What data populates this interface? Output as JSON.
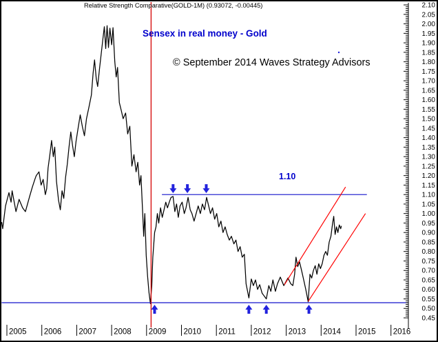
{
  "header": {
    "title": "Relative Strength Comparative(GOLD-1M) (0.93072, -0.00445)"
  },
  "annotations": {
    "subtitle": "Sensex in real money - Gold",
    "copyright": "© September 2014 Waves Strategy Advisors",
    "resistance_label": "1.10"
  },
  "colors": {
    "price": "#000000",
    "line_blue": "#1111CC",
    "arrow_blue": "#2222DD",
    "text_blue": "#0000CC",
    "red_channel": "#FF0000",
    "red_vline": "#D40000",
    "axis": "#000000",
    "background": "#FFFFFF"
  },
  "chart_data": {
    "type": "line",
    "title": "Relative Strength Comparative(GOLD-1M)",
    "last_value": 0.93072,
    "last_change": -0.00445,
    "grid": false,
    "legend_position": "none",
    "x_axis": {
      "label": "",
      "ticks": [
        2005,
        2006,
        2007,
        2008,
        2009,
        2010,
        2011,
        2012,
        2013,
        2014,
        2015,
        2016
      ],
      "range": [
        2004.85,
        2016.55
      ]
    },
    "y_axis": {
      "label": "",
      "min": 0.45,
      "max": 2.1,
      "step": 0.05,
      "minor_step": 0.01,
      "side": "right"
    },
    "series": [
      {
        "name": "Sensex priced in Gold (relative strength)",
        "color": "#000000",
        "points": [
          [
            2004.85,
            0.955
          ],
          [
            2004.88,
            0.92
          ],
          [
            2004.96,
            1.04
          ],
          [
            2005.06,
            1.11
          ],
          [
            2005.12,
            1.06
          ],
          [
            2005.15,
            1.12
          ],
          [
            2005.26,
            1.01
          ],
          [
            2005.35,
            1.075
          ],
          [
            2005.45,
            1.03
          ],
          [
            2005.53,
            1.01
          ],
          [
            2005.65,
            1.09
          ],
          [
            2005.73,
            1.14
          ],
          [
            2005.8,
            1.18
          ],
          [
            2005.84,
            1.2
          ],
          [
            2005.92,
            1.22
          ],
          [
            2005.98,
            1.15
          ],
          [
            2006.04,
            1.18
          ],
          [
            2006.1,
            1.1
          ],
          [
            2006.14,
            1.13
          ],
          [
            2006.18,
            1.24
          ],
          [
            2006.23,
            1.31
          ],
          [
            2006.28,
            1.385
          ],
          [
            2006.33,
            1.3
          ],
          [
            2006.37,
            1.35
          ],
          [
            2006.42,
            1.17
          ],
          [
            2006.48,
            1.07
          ],
          [
            2006.53,
            1.02
          ],
          [
            2006.58,
            1.12
          ],
          [
            2006.63,
            1.08
          ],
          [
            2006.68,
            1.19
          ],
          [
            2006.73,
            1.26
          ],
          [
            2006.78,
            1.35
          ],
          [
            2006.83,
            1.43
          ],
          [
            2006.88,
            1.36
          ],
          [
            2006.93,
            1.3
          ],
          [
            2006.98,
            1.38
          ],
          [
            2007.04,
            1.45
          ],
          [
            2007.1,
            1.52
          ],
          [
            2007.16,
            1.46
          ],
          [
            2007.22,
            1.41
          ],
          [
            2007.28,
            1.5
          ],
          [
            2007.35,
            1.56
          ],
          [
            2007.42,
            1.625
          ],
          [
            2007.47,
            1.74
          ],
          [
            2007.51,
            1.81
          ],
          [
            2007.56,
            1.71
          ],
          [
            2007.6,
            1.67
          ],
          [
            2007.65,
            1.76
          ],
          [
            2007.7,
            1.84
          ],
          [
            2007.75,
            1.92
          ],
          [
            2007.79,
            1.985
          ],
          [
            2007.83,
            1.87
          ],
          [
            2007.87,
            1.99
          ],
          [
            2007.91,
            1.875
          ],
          [
            2007.95,
            1.977
          ],
          [
            2008.0,
            1.89
          ],
          [
            2008.04,
            1.98
          ],
          [
            2008.09,
            1.8
          ],
          [
            2008.13,
            1.72
          ],
          [
            2008.17,
            1.77
          ],
          [
            2008.22,
            1.585
          ],
          [
            2008.28,
            1.54
          ],
          [
            2008.33,
            1.5
          ],
          [
            2008.4,
            1.53
          ],
          [
            2008.46,
            1.42
          ],
          [
            2008.52,
            1.46
          ],
          [
            2008.58,
            1.25
          ],
          [
            2008.64,
            1.31
          ],
          [
            2008.7,
            1.22
          ],
          [
            2008.75,
            1.27
          ],
          [
            2008.8,
            1.15
          ],
          [
            2008.84,
            1.2
          ],
          [
            2008.88,
            1.04
          ],
          [
            2008.92,
            0.88
          ],
          [
            2008.95,
            1.0
          ],
          [
            2008.99,
            0.78
          ],
          [
            2009.03,
            0.67
          ],
          [
            2009.07,
            0.585
          ],
          [
            2009.11,
            0.525
          ],
          [
            2009.15,
            0.62
          ],
          [
            2009.18,
            0.77
          ],
          [
            2009.23,
            0.9
          ],
          [
            2009.27,
            0.93
          ],
          [
            2009.31,
            1.0
          ],
          [
            2009.35,
            0.95
          ],
          [
            2009.4,
            1.03
          ],
          [
            2009.45,
            0.98
          ],
          [
            2009.5,
            1.02
          ],
          [
            2009.55,
            1.06
          ],
          [
            2009.6,
            1.03
          ],
          [
            2009.65,
            1.06
          ],
          [
            2009.7,
            1.085
          ],
          [
            2009.76,
            1.09
          ],
          [
            2009.81,
            1.01
          ],
          [
            2009.86,
            1.05
          ],
          [
            2009.91,
            0.98
          ],
          [
            2009.96,
            1.04
          ],
          [
            2010.02,
            1.06
          ],
          [
            2010.08,
            1.0
          ],
          [
            2010.13,
            1.03
          ],
          [
            2010.19,
            1.085
          ],
          [
            2010.25,
            1.02
          ],
          [
            2010.3,
            1.0
          ],
          [
            2010.36,
            0.96
          ],
          [
            2010.42,
            1.0
          ],
          [
            2010.48,
            1.04
          ],
          [
            2010.54,
            1.0
          ],
          [
            2010.6,
            1.05
          ],
          [
            2010.66,
            1.02
          ],
          [
            2010.72,
            1.085
          ],
          [
            2010.78,
            1.04
          ],
          [
            2010.83,
            1.0
          ],
          [
            2010.89,
            1.03
          ],
          [
            2010.95,
            0.97
          ],
          [
            2011.01,
            1.0
          ],
          [
            2011.07,
            0.93
          ],
          [
            2011.13,
            0.96
          ],
          [
            2011.19,
            0.9
          ],
          [
            2011.25,
            0.93
          ],
          [
            2011.31,
            0.89
          ],
          [
            2011.37,
            0.86
          ],
          [
            2011.43,
            0.88
          ],
          [
            2011.5,
            0.84
          ],
          [
            2011.56,
            0.86
          ],
          [
            2011.62,
            0.8
          ],
          [
            2011.68,
            0.825
          ],
          [
            2011.74,
            0.77
          ],
          [
            2011.8,
            0.785
          ],
          [
            2011.85,
            0.63
          ],
          [
            2011.93,
            0.555
          ],
          [
            2012.0,
            0.655
          ],
          [
            2012.06,
            0.62
          ],
          [
            2012.12,
            0.65
          ],
          [
            2012.18,
            0.6
          ],
          [
            2012.24,
            0.625
          ],
          [
            2012.31,
            0.58
          ],
          [
            2012.43,
            0.55
          ],
          [
            2012.5,
            0.62
          ],
          [
            2012.56,
            0.59
          ],
          [
            2012.62,
            0.65
          ],
          [
            2012.69,
            0.59
          ],
          [
            2012.75,
            0.63
          ],
          [
            2012.83,
            0.665
          ],
          [
            2012.93,
            0.62
          ],
          [
            2012.99,
            0.64
          ],
          [
            2013.05,
            0.66
          ],
          [
            2013.13,
            0.63
          ],
          [
            2013.19,
            0.62
          ],
          [
            2013.24,
            0.68
          ],
          [
            2013.28,
            0.77
          ],
          [
            2013.33,
            0.72
          ],
          [
            2013.38,
            0.745
          ],
          [
            2013.44,
            0.7
          ],
          [
            2013.5,
            0.65
          ],
          [
            2013.56,
            0.6
          ],
          [
            2013.63,
            0.535
          ],
          [
            2013.68,
            0.68
          ],
          [
            2013.73,
            0.66
          ],
          [
            2013.78,
            0.7
          ],
          [
            2013.83,
            0.725
          ],
          [
            2013.88,
            0.68
          ],
          [
            2013.93,
            0.735
          ],
          [
            2013.98,
            0.71
          ],
          [
            2014.03,
            0.735
          ],
          [
            2014.08,
            0.78
          ],
          [
            2014.13,
            0.8
          ],
          [
            2014.18,
            0.78
          ],
          [
            2014.23,
            0.85
          ],
          [
            2014.28,
            0.88
          ],
          [
            2014.33,
            0.95
          ],
          [
            2014.36,
            0.985
          ],
          [
            2014.4,
            0.89
          ],
          [
            2014.44,
            0.93
          ],
          [
            2014.48,
            0.9
          ],
          [
            2014.52,
            0.94
          ],
          [
            2014.56,
            0.92
          ],
          [
            2014.58,
            0.935
          ]
        ]
      }
    ],
    "hlines": [
      {
        "value": 1.1,
        "from_year": 2009.44,
        "to_year": 2015.31
      },
      {
        "value": 0.53,
        "from_year": 2004.85,
        "to_year": 2016.5
      }
    ],
    "vlines": [
      {
        "year": 2009.13
      }
    ],
    "channel": [
      {
        "from": [
          2012.95,
          0.625
        ],
        "to": [
          2014.7,
          1.14
        ]
      },
      {
        "from": [
          2013.63,
          0.537
        ],
        "to": [
          2015.27,
          1.0
        ]
      }
    ],
    "arrows_down_years": [
      2009.76,
      2010.17,
      2010.71
    ],
    "arrows_up_years": [
      2009.23,
      2011.93,
      2012.43,
      2013.65
    ]
  }
}
